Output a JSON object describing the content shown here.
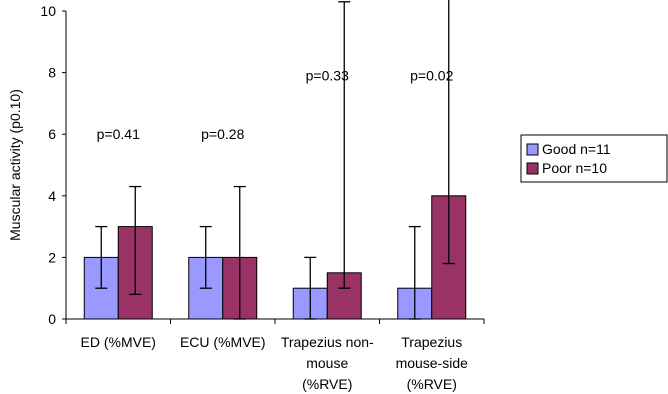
{
  "chart_data": {
    "type": "bar",
    "title": "",
    "xlabel": "",
    "ylabel": "Muscular activity (p0.10)",
    "ylim": [
      0,
      10
    ],
    "yticks": [
      "0",
      "2",
      "4",
      "6",
      "8",
      "10"
    ],
    "grid": false,
    "legend_position": "right",
    "categories": [
      [
        "ED (%MVE)"
      ],
      [
        "ECU (%MVE)"
      ],
      [
        "Trapezius non-",
        "mouse",
        "(%RVE)"
      ],
      [
        "Trapezius",
        "mouse-side",
        "(%RVE)"
      ]
    ],
    "series": [
      {
        "name": "Good n=11",
        "color": "#9999ff",
        "values": [
          2,
          2,
          1,
          1
        ],
        "err_low": [
          1,
          1,
          0,
          0
        ],
        "err_high": [
          3,
          3,
          2,
          3
        ]
      },
      {
        "name": "Poor n=10",
        "color": "#993366",
        "values": [
          3,
          2,
          1.5,
          4
        ],
        "err_low": [
          0.8,
          0,
          1,
          1.8
        ],
        "err_high": [
          4.3,
          4.3,
          10.3,
          10.5
        ]
      }
    ],
    "annotations": [
      {
        "category_index": 0,
        "text": "p=0.41",
        "y": 5.85
      },
      {
        "category_index": 1,
        "text": "p=0.28",
        "y": 5.85
      },
      {
        "category_index": 2,
        "text": "p=0.33",
        "y": 7.75
      },
      {
        "category_index": 3,
        "text": "p=0.02",
        "y": 7.75
      }
    ]
  }
}
